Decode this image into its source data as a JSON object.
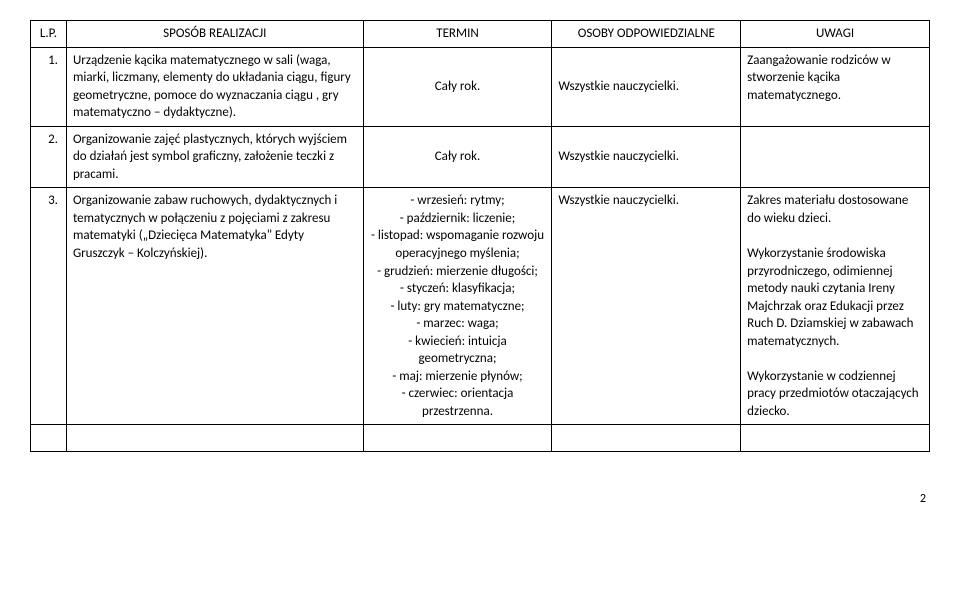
{
  "header": {
    "lp": "L.P.",
    "sposob": "SPOSÓB REALIZACJI",
    "termin": "TERMIN",
    "osoby": "OSOBY ODPOWIEDZIALNE",
    "uwagi": "UWAGI"
  },
  "rows": [
    {
      "lp": "1.",
      "sposob": "Urządzenie kącika matematycznego w sali (waga, miarki, liczmany, elementy do układania ciągu, figury geometryczne, pomoce do wyznaczania ciągu , gry matematyczno – dydaktyczne).",
      "termin": "Cały rok.",
      "osoby": "Wszystkie nauczycielki.",
      "uwagi": "Zaangażowanie rodziców w stworzenie kącika matematycznego."
    },
    {
      "lp": "2.",
      "sposob": "Organizowanie zajęć plastycznych, których wyjściem do działań jest symbol graficzny, założenie teczki z pracami.",
      "termin": "Cały rok.",
      "osoby": "Wszystkie nauczycielki.",
      "uwagi": ""
    },
    {
      "lp": "3.",
      "sposob": "Organizowanie zabaw ruchowych, dydaktycznych i tematycznych w połączeniu z pojęciami z zakresu matematyki („Dziecięca Matematyka\" Edyty Gruszczyk – Kolczyńskiej).",
      "termin": "- wrzesień: rytmy;\n- październik: liczenie;\n- listopad: wspomaganie rozwoju operacyjnego myślenia;\n- grudzień: mierzenie długości;\n- styczeń: klasyfikacja;\n- luty: gry matematyczne;\n- marzec: waga;\n- kwiecień: intuicja geometryczna;\n- maj: mierzenie płynów;\n- czerwiec: orientacja przestrzenna.",
      "osoby": "Wszystkie nauczycielki.",
      "uwagi": "Zakres materiału dostosowane do wieku dzieci.\n\nWykorzystanie środowiska przyrodniczego, odimiennej metody nauki czytania Ireny Majchrzak oraz Edukacji przez Ruch D. Dziamskiej w zabawach matematycznych.\n\nWykorzystanie w codziennej pracy przedmiotów otaczających dziecko."
    }
  ],
  "pageNumber": "2",
  "colors": {
    "text": "#000000",
    "background": "#ffffff",
    "border": "#000000"
  },
  "font": {
    "family": "Calibri",
    "size_pt": 10
  }
}
